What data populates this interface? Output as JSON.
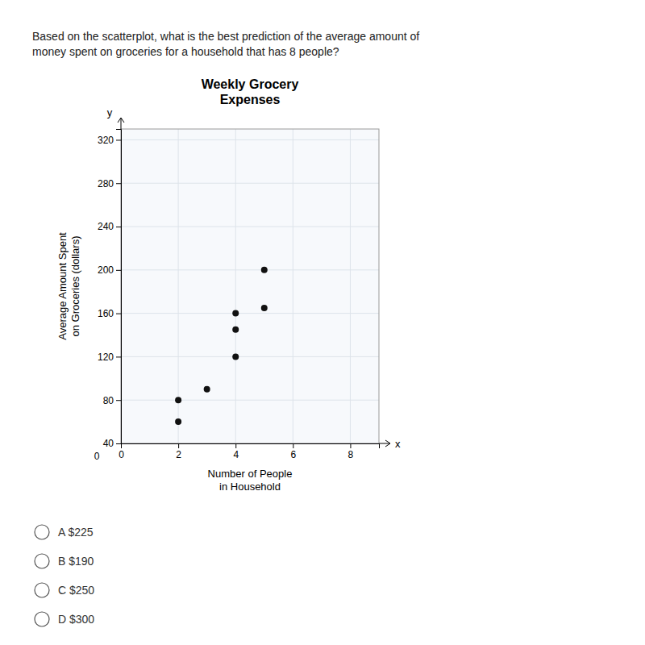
{
  "chart_data": {
    "type": "scatter",
    "title": "Weekly Grocery\nExpenses",
    "xlabel": "Number of People\nin Household",
    "ylabel": "Average Amount Spent\non Groceries (dollars)",
    "x": [
      2,
      2,
      3,
      4,
      4,
      4,
      5,
      5
    ],
    "values": [
      80,
      60,
      90,
      120,
      145,
      160,
      165,
      200
    ],
    "color": "#111111",
    "xlim": [
      0,
      9
    ],
    "ylim": [
      40,
      330
    ],
    "xticks": [
      0,
      2,
      4,
      6,
      8
    ],
    "yticks": [
      40,
      80,
      120,
      160,
      200,
      240,
      280,
      320
    ],
    "grid": true,
    "annotations": [
      "Based on the scatterplot, what is the best prediction of the average amount of\nmoney spent on groceries for a household that has 8 people?",
      "y",
      "x",
      "0",
      "A $225",
      "B $190",
      "C $250",
      "D $300"
    ]
  }
}
